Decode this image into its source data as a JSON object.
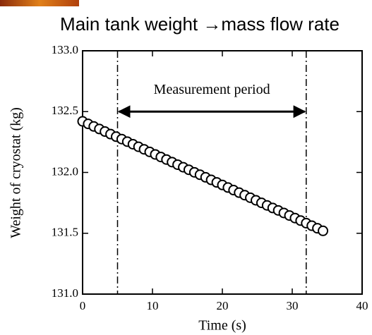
{
  "chart_data": {
    "type": "scatter",
    "title": "Main tank weight →mass flow rate",
    "x_label": "Time (s)",
    "y_label": "Weight of cryostat (kg)",
    "x": [
      0,
      0.8,
      1.6,
      2.4,
      3.2,
      4,
      4.8,
      5.6,
      6.4,
      7.2,
      8,
      8.8,
      9.6,
      10.4,
      11.2,
      12,
      12.8,
      13.6,
      14.4,
      15.2,
      16,
      16.8,
      17.6,
      18.4,
      19.2,
      20,
      20.8,
      21.6,
      22.4,
      23.2,
      24,
      24.8,
      25.6,
      26.4,
      27.2,
      28,
      28.8,
      29.6,
      30.4,
      31.2,
      32,
      32.8,
      33.6,
      34.4
    ],
    "values": [
      132.42,
      132.399,
      132.378,
      132.357,
      132.336,
      132.315,
      132.294,
      132.274,
      132.253,
      132.232,
      132.211,
      132.19,
      132.169,
      132.148,
      132.127,
      132.106,
      132.085,
      132.064,
      132.043,
      132.022,
      132.001,
      131.981,
      131.96,
      131.939,
      131.918,
      131.897,
      131.876,
      131.855,
      131.834,
      131.813,
      131.792,
      131.771,
      131.75,
      131.729,
      131.708,
      131.688,
      131.667,
      131.646,
      131.625,
      131.604,
      131.583,
      131.562,
      131.541,
      131.52
    ],
    "marker_color": "#000000",
    "xlim": [
      0,
      40
    ],
    "xticks": [
      0,
      10,
      20,
      30,
      40
    ],
    "ylim": [
      131.0,
      133.0
    ],
    "yticks": [
      {
        "value": 131.0,
        "label": "131.0"
      },
      {
        "value": 131.5,
        "label": "131.5"
      },
      {
        "value": 132.0,
        "label": "132.0"
      },
      {
        "value": 132.5,
        "label": "132.5"
      },
      {
        "value": 133.0,
        "label": "133.0"
      }
    ],
    "vlines": [
      5,
      32
    ],
    "annotation": {
      "text": "Measurement period",
      "x_start": 5,
      "x_end": 32,
      "y": 132.5
    }
  }
}
